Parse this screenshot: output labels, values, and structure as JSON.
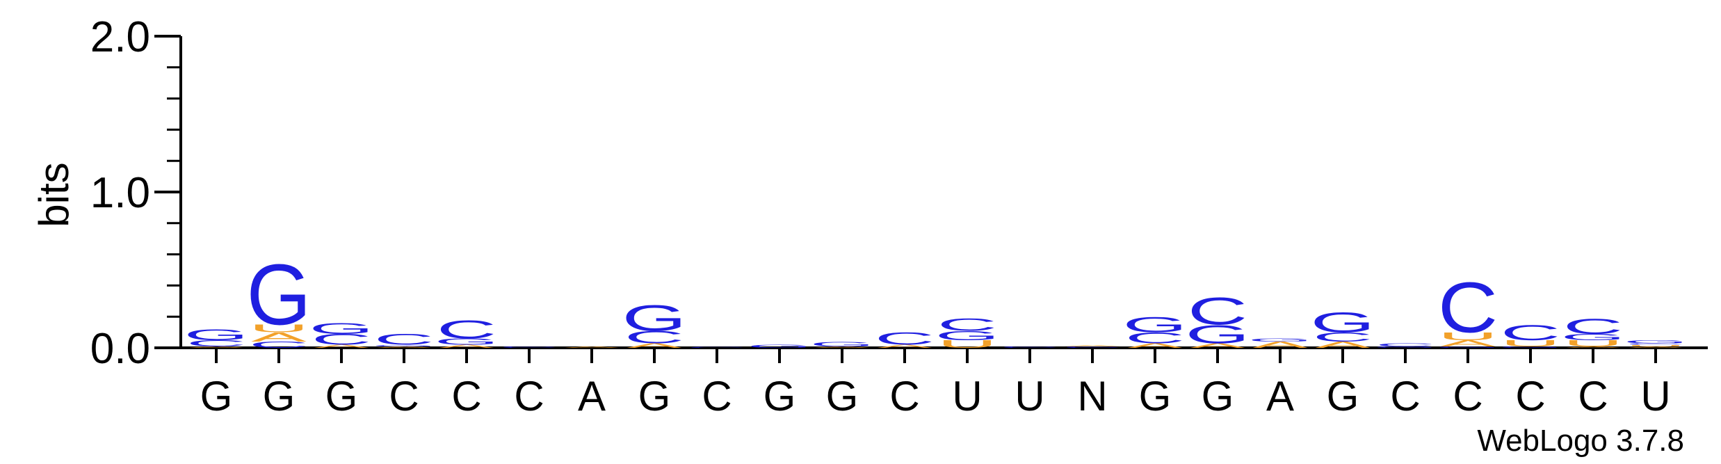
{
  "chart_data": {
    "type": "sequence-logo",
    "ylabel": "bits",
    "ylim": [
      0,
      2.0
    ],
    "yticks": [
      "0.0",
      "1.0",
      "2.0"
    ],
    "colors": {
      "G": "#1f1fe0",
      "C": "#1f1fe0",
      "A": "#f2a12a",
      "U": "#f2a12a"
    },
    "footer": "WebLogo 3.7.8",
    "positions": [
      {
        "label": "G",
        "stack": [
          {
            "base": "A",
            "bits": 0.01
          },
          {
            "base": "C",
            "bits": 0.04
          },
          {
            "base": "G",
            "bits": 0.07
          }
        ]
      },
      {
        "label": "G",
        "stack": [
          {
            "base": "C",
            "bits": 0.04
          },
          {
            "base": "A",
            "bits": 0.06
          },
          {
            "base": "U",
            "bits": 0.05
          },
          {
            "base": "G",
            "bits": 0.4
          }
        ]
      },
      {
        "label": "G",
        "stack": [
          {
            "base": "A",
            "bits": 0.02
          },
          {
            "base": "C",
            "bits": 0.07
          },
          {
            "base": "G",
            "bits": 0.07
          }
        ]
      },
      {
        "label": "C",
        "stack": [
          {
            "base": "A",
            "bits": 0.01
          },
          {
            "base": "G",
            "bits": 0.01
          },
          {
            "base": "C",
            "bits": 0.07
          }
        ]
      },
      {
        "label": "C",
        "stack": [
          {
            "base": "A",
            "bits": 0.02
          },
          {
            "base": "G",
            "bits": 0.04
          },
          {
            "base": "C",
            "bits": 0.12
          }
        ]
      },
      {
        "label": "C",
        "stack": [
          {
            "base": "C",
            "bits": 0.01
          }
        ]
      },
      {
        "label": "A",
        "stack": [
          {
            "base": "A",
            "bits": 0.01
          }
        ]
      },
      {
        "label": "G",
        "stack": [
          {
            "base": "A",
            "bits": 0.03
          },
          {
            "base": "C",
            "bits": 0.08
          },
          {
            "base": "G",
            "bits": 0.17
          }
        ]
      },
      {
        "label": "C",
        "stack": [
          {
            "base": "C",
            "bits": 0.005
          }
        ]
      },
      {
        "label": "G",
        "stack": [
          {
            "base": "G",
            "bits": 0.02
          }
        ]
      },
      {
        "label": "G",
        "stack": [
          {
            "base": "A",
            "bits": 0.01
          },
          {
            "base": "G",
            "bits": 0.03
          }
        ]
      },
      {
        "label": "C",
        "stack": [
          {
            "base": "A",
            "bits": 0.02
          },
          {
            "base": "C",
            "bits": 0.08
          }
        ]
      },
      {
        "label": "U",
        "stack": [
          {
            "base": "U",
            "bits": 0.05
          },
          {
            "base": "G",
            "bits": 0.06
          },
          {
            "base": "C",
            "bits": 0.08
          }
        ]
      },
      {
        "label": "U",
        "stack": [
          {
            "base": "C",
            "bits": 0.01
          }
        ]
      },
      {
        "label": "N",
        "stack": [
          {
            "base": "C",
            "bits": 0.01
          },
          {
            "base": "A",
            "bits": 0.01
          }
        ]
      },
      {
        "label": "G",
        "stack": [
          {
            "base": "A",
            "bits": 0.03
          },
          {
            "base": "C",
            "bits": 0.07
          },
          {
            "base": "G",
            "bits": 0.1
          }
        ]
      },
      {
        "label": "G",
        "stack": [
          {
            "base": "A",
            "bits": 0.03
          },
          {
            "base": "G",
            "bits": 0.12
          },
          {
            "base": "C",
            "bits": 0.18
          }
        ]
      },
      {
        "label": "A",
        "stack": [
          {
            "base": "A",
            "bits": 0.04
          },
          {
            "base": "G",
            "bits": 0.02
          }
        ]
      },
      {
        "label": "G",
        "stack": [
          {
            "base": "A",
            "bits": 0.04
          },
          {
            "base": "C",
            "bits": 0.06
          },
          {
            "base": "G",
            "bits": 0.13
          }
        ]
      },
      {
        "label": "C",
        "stack": [
          {
            "base": "G",
            "bits": 0.01
          },
          {
            "base": "C",
            "bits": 0.02
          }
        ]
      },
      {
        "label": "C",
        "stack": [
          {
            "base": "G",
            "bits": 0.01
          },
          {
            "base": "A",
            "bits": 0.04
          },
          {
            "base": "U",
            "bits": 0.05
          },
          {
            "base": "C",
            "bits": 0.33
          }
        ]
      },
      {
        "label": "C",
        "stack": [
          {
            "base": "G",
            "bits": 0.01
          },
          {
            "base": "U",
            "bits": 0.04
          },
          {
            "base": "C",
            "bits": 0.1
          }
        ]
      },
      {
        "label": "C",
        "stack": [
          {
            "base": "A",
            "bits": 0.01
          },
          {
            "base": "U",
            "bits": 0.04
          },
          {
            "base": "G",
            "bits": 0.04
          },
          {
            "base": "C",
            "bits": 0.1
          }
        ]
      },
      {
        "label": "U",
        "stack": [
          {
            "base": "A",
            "bits": 0.01
          },
          {
            "base": "U",
            "bits": 0.01
          },
          {
            "base": "C",
            "bits": 0.01
          },
          {
            "base": "G",
            "bits": 0.02
          }
        ]
      }
    ]
  }
}
